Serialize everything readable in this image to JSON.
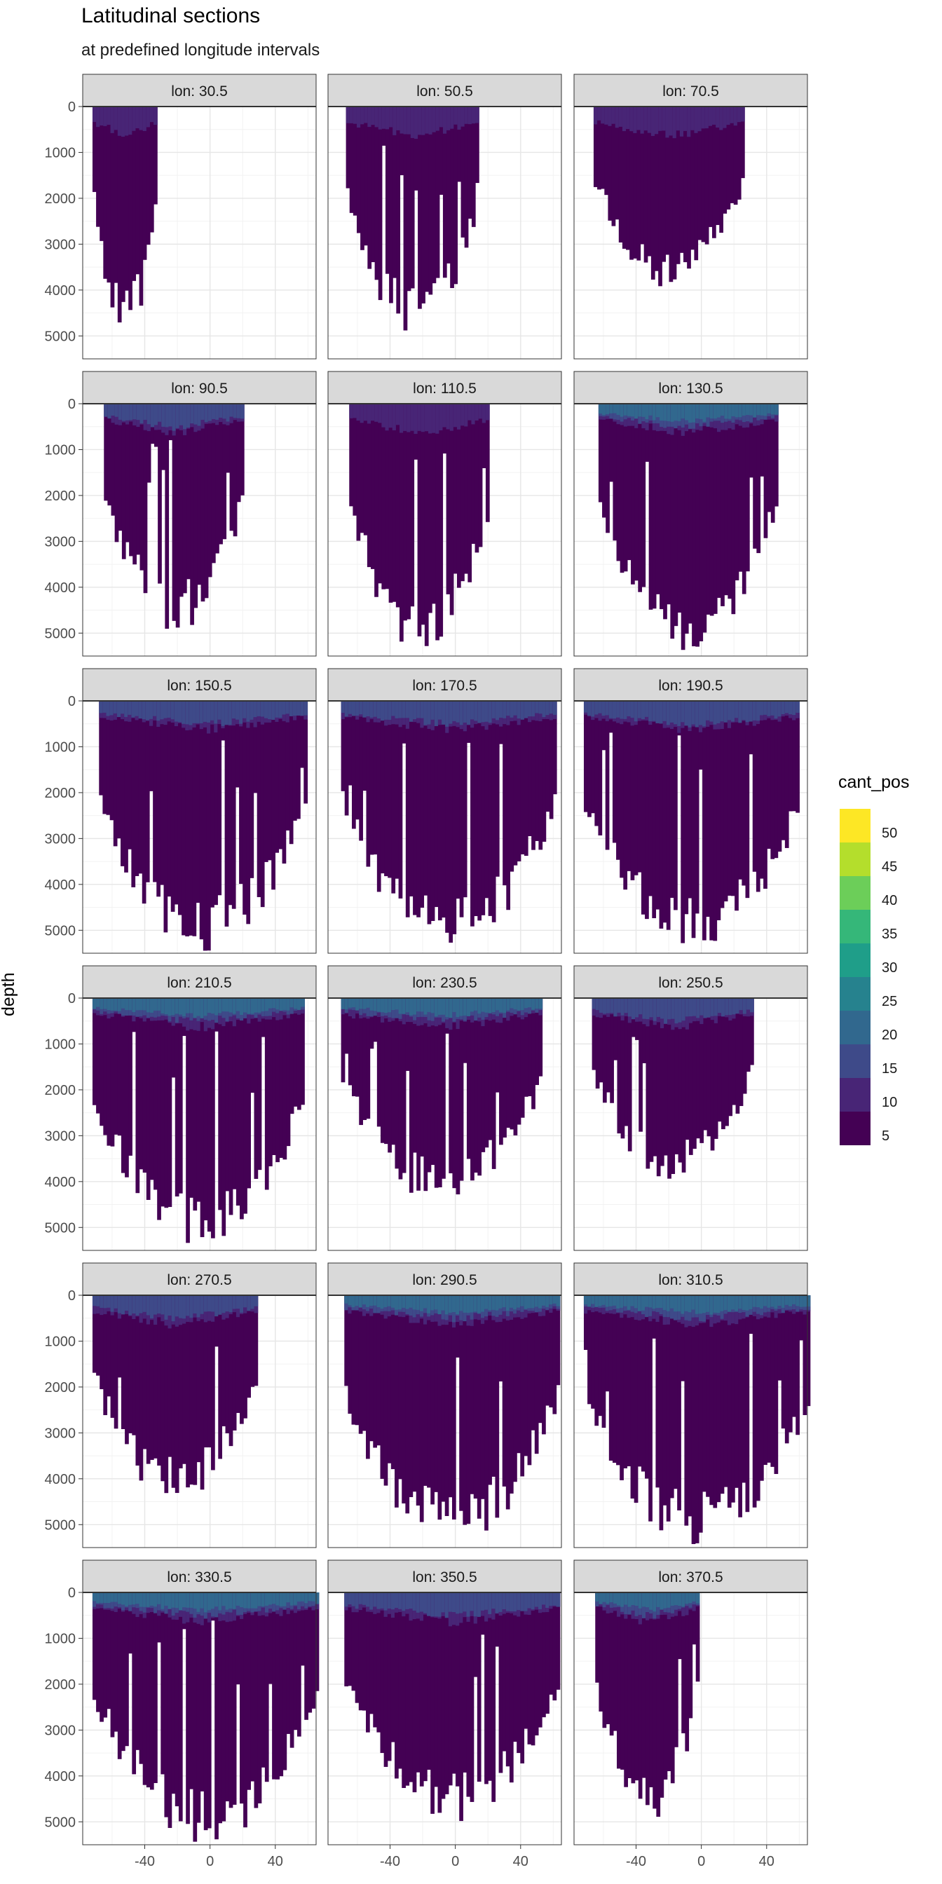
{
  "chart_data": {
    "type": "heatmap",
    "title": "Latitudinal sections",
    "subtitle": "at predefined longitude intervals",
    "xlabel": "",
    "ylabel": "depth",
    "x_ticks": [
      -40,
      0,
      40
    ],
    "y_ticks": [
      0,
      1000,
      2000,
      3000,
      4000,
      5000
    ],
    "xlim": [
      -78,
      65
    ],
    "ylim": [
      5500,
      0
    ],
    "grid": true,
    "legend": {
      "title": "cant_pos",
      "placement": "right",
      "levels": [
        5,
        10,
        15,
        20,
        25,
        30,
        35,
        40,
        45,
        50
      ],
      "colors": [
        "#440154",
        "#482576",
        "#3E4A89",
        "#31688E",
        "#26828E",
        "#1F9E89",
        "#35B779",
        "#6CCE59",
        "#B4DE2C",
        "#FDE725"
      ]
    },
    "panels": [
      {
        "label": "lon: 30.5",
        "lat_range": [
          -72,
          -33
        ],
        "max_depth": 5000,
        "surface_peak": 12
      },
      {
        "label": "lon: 50.5",
        "lat_range": [
          -67,
          14
        ],
        "max_depth": 5000,
        "surface_peak": 12
      },
      {
        "label": "lon: 70.5",
        "lat_range": [
          -66,
          25
        ],
        "max_depth": 4000,
        "surface_peak": 12
      },
      {
        "label": "lon: 90.5",
        "lat_range": [
          -65,
          20
        ],
        "max_depth": 5000,
        "surface_peak": 15
      },
      {
        "label": "lon: 110.5",
        "lat_range": [
          -65,
          20
        ],
        "max_depth": 5500,
        "surface_peak": 12
      },
      {
        "label": "lon: 130.5",
        "lat_range": [
          -63,
          45
        ],
        "max_depth": 5500,
        "surface_peak": 20
      },
      {
        "label": "lon: 150.5",
        "lat_range": [
          -68,
          58
        ],
        "max_depth": 5500,
        "surface_peak": 15
      },
      {
        "label": "lon: 170.5",
        "lat_range": [
          -70,
          60
        ],
        "max_depth": 5500,
        "surface_peak": 15
      },
      {
        "label": "lon: 190.5",
        "lat_range": [
          -72,
          60
        ],
        "max_depth": 5500,
        "surface_peak": 15
      },
      {
        "label": "lon: 210.5",
        "lat_range": [
          -72,
          57
        ],
        "max_depth": 5500,
        "surface_peak": 20
      },
      {
        "label": "lon: 230.5",
        "lat_range": [
          -70,
          52
        ],
        "max_depth": 4500,
        "surface_peak": 20
      },
      {
        "label": "lon: 250.5",
        "lat_range": [
          -67,
          30
        ],
        "max_depth": 4000,
        "surface_peak": 15
      },
      {
        "label": "lon: 270.5",
        "lat_range": [
          -72,
          28
        ],
        "max_depth": 4500,
        "surface_peak": 15
      },
      {
        "label": "lon: 290.5",
        "lat_range": [
          -68,
          62
        ],
        "max_depth": 5500,
        "surface_peak": 20
      },
      {
        "label": "lon: 310.5",
        "lat_range": [
          -72,
          65
        ],
        "max_depth": 5500,
        "surface_peak": 20
      },
      {
        "label": "lon: 330.5",
        "lat_range": [
          -72,
          65
        ],
        "max_depth": 5500,
        "surface_peak": 20
      },
      {
        "label": "lon: 350.5",
        "lat_range": [
          -68,
          64
        ],
        "max_depth": 5000,
        "surface_peak": 15
      },
      {
        "label": "lon: 370.5",
        "lat_range": [
          -65,
          -2
        ],
        "max_depth": 5000,
        "surface_peak": 20
      }
    ]
  }
}
